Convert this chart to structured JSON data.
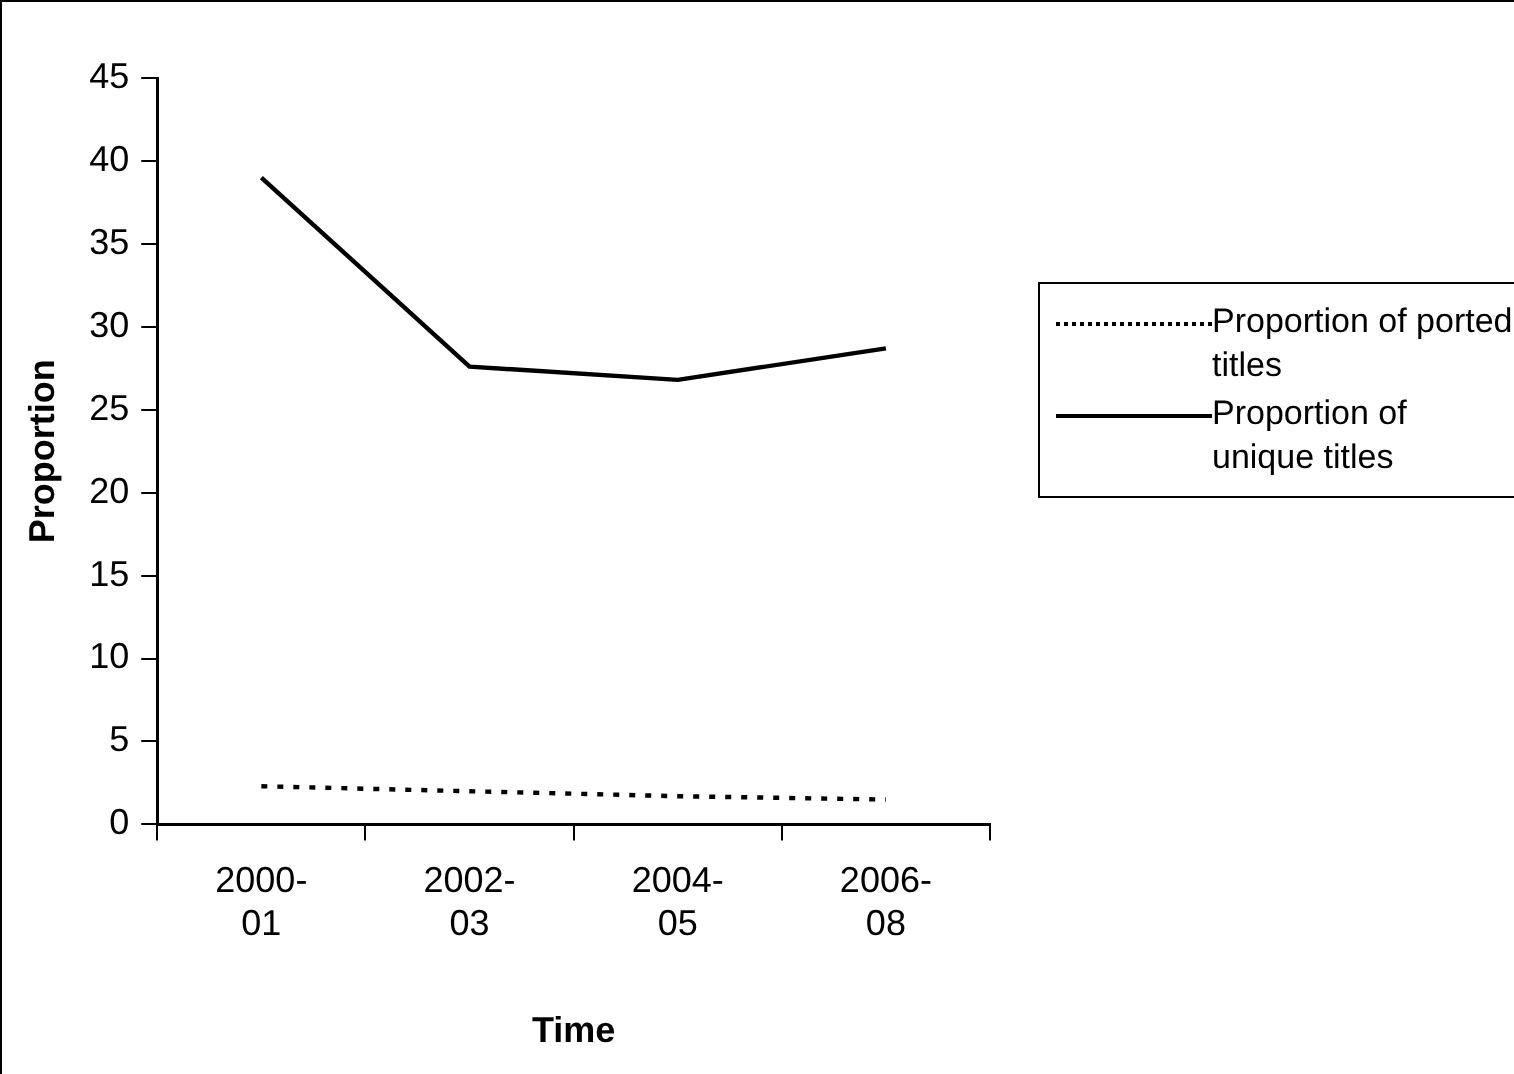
{
  "chart_data": {
    "type": "line",
    "xlabel": "Time",
    "ylabel": "Proportion",
    "categories": [
      "2000-01",
      "2002-03",
      "2004-05",
      "2006-08"
    ],
    "series": [
      {
        "name": "Proportion of ported titles",
        "color": "#000000",
        "line_style": "dotted",
        "values": [
          2.3,
          2.0,
          1.7,
          1.5
        ]
      },
      {
        "name": "Proportion of unique titles",
        "color": "#000000",
        "line_style": "solid",
        "values": [
          39.0,
          27.6,
          26.8,
          28.7
        ]
      }
    ],
    "ylim": [
      0,
      45
    ],
    "yticks": [
      0,
      5,
      10,
      15,
      20,
      25,
      30,
      35,
      40,
      45
    ],
    "grid": false,
    "legend": "right",
    "marker": "none"
  }
}
